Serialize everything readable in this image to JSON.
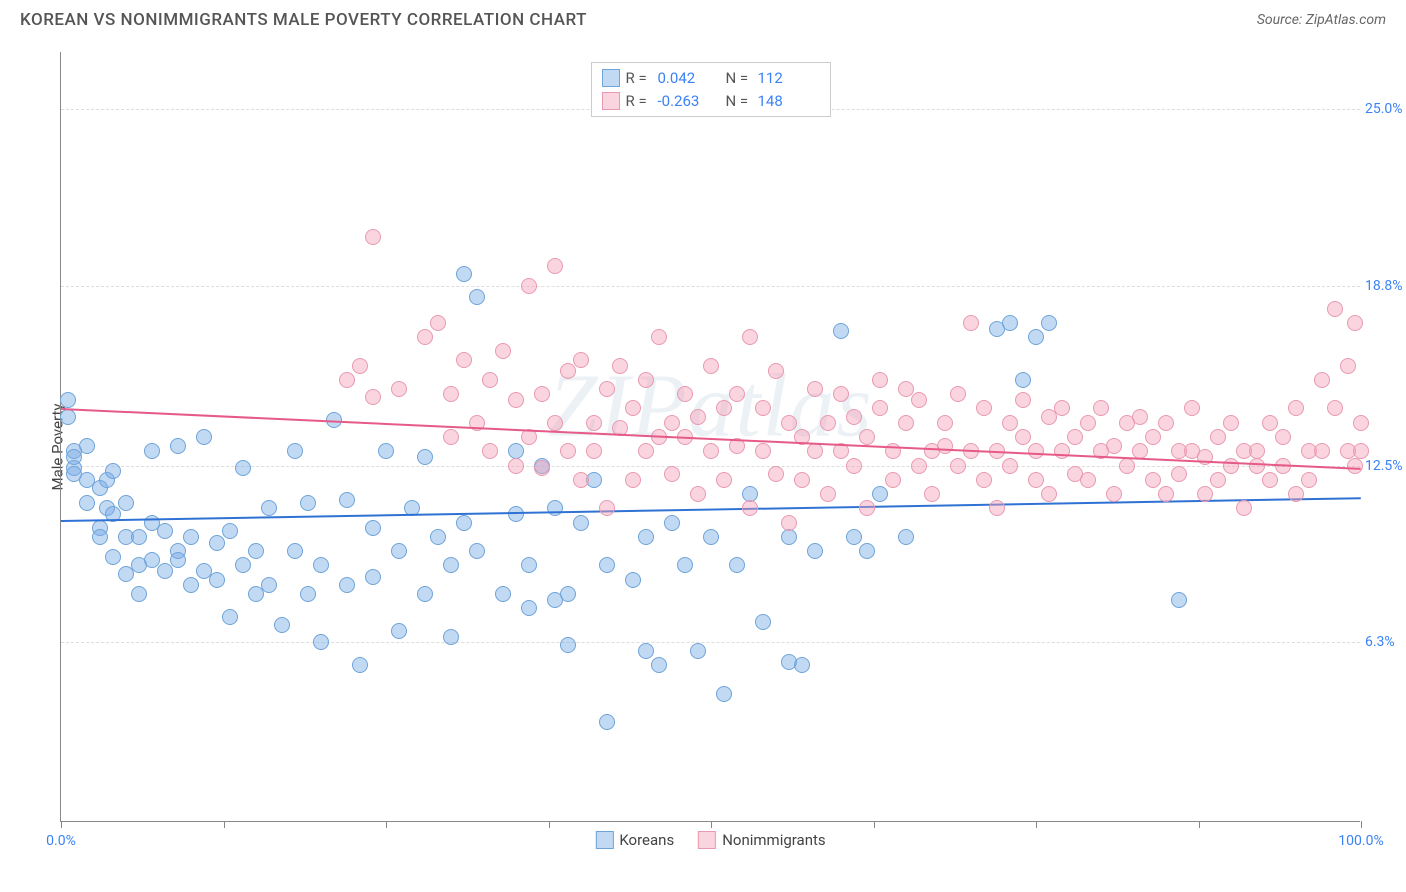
{
  "title": "KOREAN VS NONIMMIGRANTS MALE POVERTY CORRELATION CHART",
  "source_label": "Source: ZipAtlas.com",
  "ylabel": "Male Poverty",
  "watermark": "ZIPatlas",
  "chart": {
    "type": "scatter",
    "background_color": "#ffffff",
    "grid_color": "#dddddd",
    "axis_color": "#888888",
    "label_color": "#3b82f6",
    "xlim": [
      0,
      100
    ],
    "ylim": [
      0,
      27
    ],
    "xtick_positions": [
      0,
      12.5,
      25,
      37.5,
      50,
      62.5,
      75,
      87.5,
      100
    ],
    "xtick_labels": {
      "0": "0.0%",
      "100": "100.0%"
    },
    "yticks": [
      6.3,
      12.5,
      18.8,
      25.0
    ],
    "ytick_labels": [
      "6.3%",
      "12.5%",
      "18.8%",
      "25.0%"
    ],
    "point_radius": 8,
    "series": [
      {
        "name": "Koreans",
        "fill": "rgba(120,170,230,0.45)",
        "stroke": "#6fa4d8",
        "trend_color": "#2f72d4",
        "R": 0.042,
        "N": 112,
        "trend": {
          "y_at_x0": 10.6,
          "y_at_x100": 11.4
        },
        "points": [
          [
            0.5,
            14.2
          ],
          [
            0.5,
            14.8
          ],
          [
            1,
            13.0
          ],
          [
            1,
            12.4
          ],
          [
            1,
            12.8
          ],
          [
            1,
            12.2
          ],
          [
            2,
            13.2
          ],
          [
            2,
            11.2
          ],
          [
            2,
            12.0
          ],
          [
            3,
            10.3
          ],
          [
            3,
            11.7
          ],
          [
            3,
            10.0
          ],
          [
            3.5,
            11.0
          ],
          [
            3.5,
            12.0
          ],
          [
            4,
            9.3
          ],
          [
            4,
            10.8
          ],
          [
            4,
            12.3
          ],
          [
            5,
            10.0
          ],
          [
            5,
            8.7
          ],
          [
            5,
            11.2
          ],
          [
            6,
            10.0
          ],
          [
            6,
            9.0
          ],
          [
            6,
            8.0
          ],
          [
            7,
            10.5
          ],
          [
            7,
            13.0
          ],
          [
            7,
            9.2
          ],
          [
            8,
            10.2
          ],
          [
            8,
            8.8
          ],
          [
            9,
            13.2
          ],
          [
            9,
            9.5
          ],
          [
            9,
            9.2
          ],
          [
            10,
            10.0
          ],
          [
            10,
            8.3
          ],
          [
            11,
            8.8
          ],
          [
            11,
            13.5
          ],
          [
            12,
            8.5
          ],
          [
            12,
            9.8
          ],
          [
            13,
            10.2
          ],
          [
            13,
            7.2
          ],
          [
            14,
            9.0
          ],
          [
            14,
            12.4
          ],
          [
            15,
            8.0
          ],
          [
            15,
            9.5
          ],
          [
            16,
            8.3
          ],
          [
            16,
            11.0
          ],
          [
            17,
            6.9
          ],
          [
            18,
            9.5
          ],
          [
            18,
            13.0
          ],
          [
            19,
            8.0
          ],
          [
            19,
            11.2
          ],
          [
            20,
            6.3
          ],
          [
            20,
            9.0
          ],
          [
            21,
            14.1
          ],
          [
            22,
            8.3
          ],
          [
            22,
            11.3
          ],
          [
            23,
            5.5
          ],
          [
            24,
            8.6
          ],
          [
            24,
            10.3
          ],
          [
            25,
            13.0
          ],
          [
            26,
            9.5
          ],
          [
            26,
            6.7
          ],
          [
            27,
            11.0
          ],
          [
            28,
            8.0
          ],
          [
            28,
            12.8
          ],
          [
            29,
            10.0
          ],
          [
            30,
            9.0
          ],
          [
            30,
            6.5
          ],
          [
            31,
            10.5
          ],
          [
            31,
            19.2
          ],
          [
            32,
            9.5
          ],
          [
            32,
            18.4
          ],
          [
            34,
            8.0
          ],
          [
            35,
            10.8
          ],
          [
            35,
            13.0
          ],
          [
            36,
            7.5
          ],
          [
            36,
            9.0
          ],
          [
            37,
            12.5
          ],
          [
            38,
            11.0
          ],
          [
            38,
            7.8
          ],
          [
            39,
            8.0
          ],
          [
            39,
            6.2
          ],
          [
            40,
            10.5
          ],
          [
            41,
            12.0
          ],
          [
            42,
            9.0
          ],
          [
            42,
            3.5
          ],
          [
            44,
            8.5
          ],
          [
            45,
            6.0
          ],
          [
            45,
            10.0
          ],
          [
            46,
            5.5
          ],
          [
            47,
            10.5
          ],
          [
            48,
            9.0
          ],
          [
            49,
            6.0
          ],
          [
            50,
            10.0
          ],
          [
            51,
            4.5
          ],
          [
            52,
            9.0
          ],
          [
            53,
            11.5
          ],
          [
            54,
            7.0
          ],
          [
            56,
            10.0
          ],
          [
            56,
            5.6
          ],
          [
            57,
            5.5
          ],
          [
            58,
            9.5
          ],
          [
            60,
            17.2
          ],
          [
            61,
            10.0
          ],
          [
            62,
            9.5
          ],
          [
            63,
            11.5
          ],
          [
            65,
            10.0
          ],
          [
            72,
            17.3
          ],
          [
            73,
            17.5
          ],
          [
            74,
            15.5
          ],
          [
            75,
            17.0
          ],
          [
            76,
            17.5
          ],
          [
            86,
            7.8
          ]
        ]
      },
      {
        "name": "Nonimmigrants",
        "fill": "rgba(245,160,185,0.45)",
        "stroke": "#e89ab0",
        "trend_color": "#e65a88",
        "R": -0.263,
        "N": 148,
        "trend": {
          "y_at_x0": 14.5,
          "y_at_x100": 12.4
        },
        "points": [
          [
            22,
            15.5
          ],
          [
            23,
            16.0
          ],
          [
            24,
            20.5
          ],
          [
            24,
            14.9
          ],
          [
            26,
            15.2
          ],
          [
            28,
            17.0
          ],
          [
            29,
            17.5
          ],
          [
            30,
            15.0
          ],
          [
            30,
            13.5
          ],
          [
            31,
            16.2
          ],
          [
            32,
            14.0
          ],
          [
            33,
            15.5
          ],
          [
            33,
            13.0
          ],
          [
            34,
            16.5
          ],
          [
            35,
            12.5
          ],
          [
            35,
            14.8
          ],
          [
            36,
            18.8
          ],
          [
            36,
            13.5
          ],
          [
            37,
            15.0
          ],
          [
            37,
            12.4
          ],
          [
            38,
            19.5
          ],
          [
            38,
            14.0
          ],
          [
            39,
            13.0
          ],
          [
            39,
            15.8
          ],
          [
            40,
            12.0
          ],
          [
            40,
            16.2
          ],
          [
            41,
            14.0
          ],
          [
            41,
            13.0
          ],
          [
            42,
            15.2
          ],
          [
            42,
            11.0
          ],
          [
            43,
            13.8
          ],
          [
            43,
            16.0
          ],
          [
            44,
            14.5
          ],
          [
            44,
            12.0
          ],
          [
            45,
            13.0
          ],
          [
            45,
            15.5
          ],
          [
            46,
            13.5
          ],
          [
            46,
            17.0
          ],
          [
            47,
            14.0
          ],
          [
            47,
            12.2
          ],
          [
            48,
            13.5
          ],
          [
            48,
            15.0
          ],
          [
            49,
            11.5
          ],
          [
            49,
            14.2
          ],
          [
            50,
            13.0
          ],
          [
            50,
            16.0
          ],
          [
            51,
            12.0
          ],
          [
            51,
            14.5
          ],
          [
            52,
            13.2
          ],
          [
            52,
            15.0
          ],
          [
            53,
            11.0
          ],
          [
            53,
            17.0
          ],
          [
            54,
            13.0
          ],
          [
            54,
            14.5
          ],
          [
            55,
            12.2
          ],
          [
            55,
            15.8
          ],
          [
            56,
            10.5
          ],
          [
            56,
            14.0
          ],
          [
            57,
            13.5
          ],
          [
            57,
            12.0
          ],
          [
            58,
            15.2
          ],
          [
            58,
            13.0
          ],
          [
            59,
            14.0
          ],
          [
            59,
            11.5
          ],
          [
            60,
            13.0
          ],
          [
            60,
            15.0
          ],
          [
            61,
            12.5
          ],
          [
            61,
            14.2
          ],
          [
            62,
            13.5
          ],
          [
            62,
            11.0
          ],
          [
            63,
            14.5
          ],
          [
            63,
            15.5
          ],
          [
            64,
            13.0
          ],
          [
            64,
            12.0
          ],
          [
            65,
            14.0
          ],
          [
            65,
            15.2
          ],
          [
            66,
            12.5
          ],
          [
            66,
            14.8
          ],
          [
            67,
            13.0
          ],
          [
            67,
            11.5
          ],
          [
            68,
            14.0
          ],
          [
            68,
            13.2
          ],
          [
            69,
            12.5
          ],
          [
            69,
            15.0
          ],
          [
            70,
            17.5
          ],
          [
            70,
            13.0
          ],
          [
            71,
            12.0
          ],
          [
            71,
            14.5
          ],
          [
            72,
            13.0
          ],
          [
            72,
            11.0
          ],
          [
            73,
            14.0
          ],
          [
            73,
            12.5
          ],
          [
            74,
            13.5
          ],
          [
            74,
            14.8
          ],
          [
            75,
            12.0
          ],
          [
            75,
            13.0
          ],
          [
            76,
            14.2
          ],
          [
            76,
            11.5
          ],
          [
            77,
            13.0
          ],
          [
            77,
            14.5
          ],
          [
            78,
            12.2
          ],
          [
            78,
            13.5
          ],
          [
            79,
            14.0
          ],
          [
            79,
            12.0
          ],
          [
            80,
            13.0
          ],
          [
            80,
            14.5
          ],
          [
            81,
            11.5
          ],
          [
            81,
            13.2
          ],
          [
            82,
            14.0
          ],
          [
            82,
            12.5
          ],
          [
            83,
            13.0
          ],
          [
            83,
            14.2
          ],
          [
            84,
            12.0
          ],
          [
            84,
            13.5
          ],
          [
            85,
            14.0
          ],
          [
            85,
            11.5
          ],
          [
            86,
            13.0
          ],
          [
            86,
            12.2
          ],
          [
            87,
            14.5
          ],
          [
            87,
            13.0
          ],
          [
            88,
            11.5
          ],
          [
            88,
            12.8
          ],
          [
            89,
            13.5
          ],
          [
            89,
            12.0
          ],
          [
            90,
            14.0
          ],
          [
            90,
            12.5
          ],
          [
            91,
            13.0
          ],
          [
            91,
            11.0
          ],
          [
            92,
            12.5
          ],
          [
            92,
            13.0
          ],
          [
            93,
            12.0
          ],
          [
            93,
            14.0
          ],
          [
            94,
            12.5
          ],
          [
            94,
            13.5
          ],
          [
            95,
            11.5
          ],
          [
            95,
            14.5
          ],
          [
            96,
            13.0
          ],
          [
            96,
            12.0
          ],
          [
            97,
            15.5
          ],
          [
            97,
            13.0
          ],
          [
            98,
            14.5
          ],
          [
            98,
            18.0
          ],
          [
            99,
            13.0
          ],
          [
            99,
            16.0
          ],
          [
            99.5,
            17.5
          ],
          [
            99.5,
            12.5
          ],
          [
            100,
            13.0
          ],
          [
            100,
            14.0
          ]
        ]
      }
    ],
    "legend_items": [
      "Koreans",
      "Nonimmigrants"
    ]
  }
}
